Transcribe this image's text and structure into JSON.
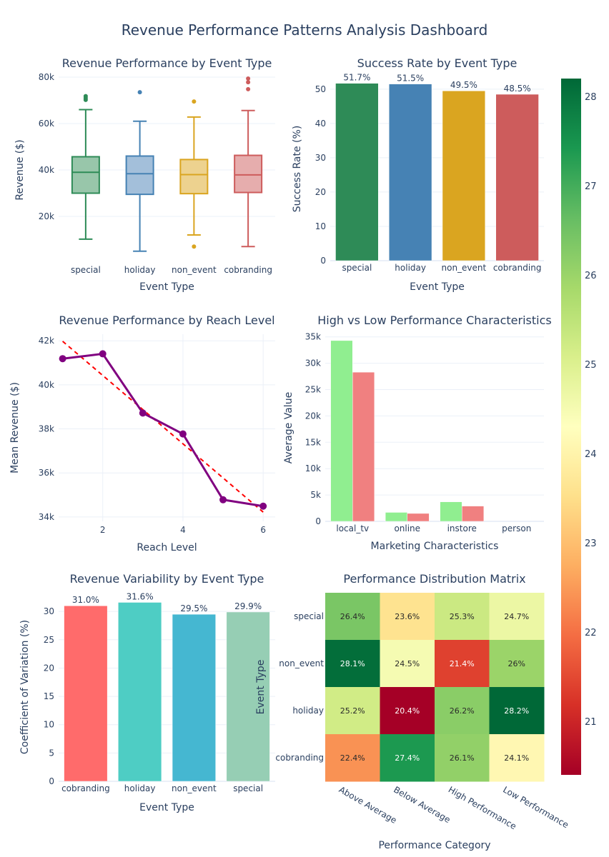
{
  "dashboard": {
    "title": "Revenue Performance Patterns Analysis Dashboard"
  },
  "chart_data": [
    {
      "id": "box",
      "type": "box",
      "title": "Revenue Performance by Event Type",
      "xlabel": "Event Type",
      "ylabel": "Revenue ($)",
      "ylim": [
        0,
        80000
      ],
      "yticks": [
        20000,
        40000,
        60000,
        80000
      ],
      "ytick_labels": [
        "20k",
        "40k",
        "60k",
        "80k"
      ],
      "categories": [
        "special",
        "holiday",
        "non_event",
        "cobranding"
      ],
      "series": [
        {
          "name": "special",
          "color": "#2e8b57",
          "fill": "#98c6aa",
          "lower": 10200,
          "q1": 30000,
          "median": 39000,
          "q3": 45700,
          "upper": 66000,
          "outliers": [
            70200,
            71000,
            71800
          ]
        },
        {
          "name": "holiday",
          "color": "#4682b4",
          "fill": "#a3bfda",
          "lower": 5000,
          "q1": 29500,
          "median": 38400,
          "q3": 46000,
          "upper": 61000,
          "outliers": [
            73500
          ]
        },
        {
          "name": "non_event",
          "color": "#daa520",
          "fill": "#edd28f",
          "lower": 12000,
          "q1": 29800,
          "median": 38000,
          "q3": 44500,
          "upper": 62800,
          "outliers": [
            69500,
            7000
          ]
        },
        {
          "name": "cobranding",
          "color": "#cd5c5c",
          "fill": "#e6adad",
          "lower": 7000,
          "q1": 30300,
          "median": 37900,
          "q3": 46300,
          "upper": 65600,
          "outliers": [
            74800,
            77800,
            79400
          ]
        }
      ]
    },
    {
      "id": "success",
      "type": "bar",
      "title": "Success Rate by Event Type",
      "xlabel": "Event Type",
      "ylabel": "Success Rate (%)",
      "ylim": [
        0,
        53.5
      ],
      "yticks": [
        0,
        10,
        20,
        30,
        40,
        50
      ],
      "categories": [
        "special",
        "holiday",
        "non_event",
        "cobranding"
      ],
      "values": [
        51.7,
        51.5,
        49.5,
        48.5
      ],
      "labels": [
        "51.7%",
        "51.5%",
        "49.5%",
        "48.5%"
      ],
      "colors": [
        "#2e8b57",
        "#4682b4",
        "#daa520",
        "#cd5c5c"
      ]
    },
    {
      "id": "reach",
      "type": "line",
      "title": "Revenue Performance by Reach Level",
      "xlabel": "Reach Level",
      "ylabel": "Mean Revenue ($)",
      "xlim": [
        0.9,
        6.3
      ],
      "ylim": [
        33800,
        42300
      ],
      "xticks": [
        2,
        4,
        6
      ],
      "yticks": [
        34000,
        36000,
        38000,
        40000,
        42000
      ],
      "ytick_labels": [
        "34k",
        "36k",
        "38k",
        "40k",
        "42k"
      ],
      "x": [
        1,
        2,
        3,
        4,
        5,
        6
      ],
      "series": [
        {
          "name": "Mean Revenue",
          "color": "#800080",
          "values": [
            41190,
            41410,
            38720,
            37770,
            34780,
            34490
          ]
        },
        {
          "name": "Trend",
          "color": "#ff0000",
          "dash": true,
          "x": [
            1,
            6
          ],
          "values": [
            41980,
            34220
          ]
        }
      ]
    },
    {
      "id": "highlow",
      "type": "bar",
      "title": "High vs Low Performance Characteristics",
      "xlabel": "Marketing Characteristics",
      "ylabel": "Average Value",
      "ylim": [
        0,
        35500
      ],
      "yticks": [
        0,
        5000,
        10000,
        15000,
        20000,
        25000,
        30000,
        35000
      ],
      "ytick_labels": [
        "0",
        "5k",
        "10k",
        "15k",
        "20k",
        "25k",
        "30k",
        "35k"
      ],
      "categories": [
        "local_tv",
        "online",
        "instore",
        "person"
      ],
      "series": [
        {
          "name": "High Performance",
          "color": "#90ee90",
          "values": [
            34300,
            1700,
            3700,
            0
          ]
        },
        {
          "name": "Low Performance",
          "color": "#f08080",
          "values": [
            28300,
            1500,
            2900,
            0
          ]
        }
      ]
    },
    {
      "id": "cv",
      "type": "bar",
      "title": "Revenue Variability by Event Type",
      "xlabel": "Event Type",
      "ylabel": "Coefficient of Variation (%)",
      "ylim": [
        0,
        33.3
      ],
      "yticks": [
        0,
        5,
        10,
        15,
        20,
        25,
        30
      ],
      "categories": [
        "cobranding",
        "holiday",
        "non_event",
        "special"
      ],
      "values": [
        31.0,
        31.6,
        29.5,
        29.9
      ],
      "labels": [
        "31.0%",
        "31.6%",
        "29.5%",
        "29.9%"
      ],
      "colors": [
        "#ff6b6b",
        "#4ecdc4",
        "#45b7d1",
        "#96ceb4"
      ]
    },
    {
      "id": "heat",
      "type": "heatmap",
      "title": "Performance Distribution Matrix",
      "xlabel": "Performance Category",
      "ylabel": "Event Type",
      "x": [
        "Above Average",
        "Below Average",
        "High Performance",
        "Low Performance"
      ],
      "y": [
        "special",
        "non_event",
        "holiday",
        "cobranding"
      ],
      "z": [
        [
          26.4,
          23.6,
          25.3,
          24.7
        ],
        [
          28.1,
          24.5,
          21.4,
          26.0
        ],
        [
          25.2,
          20.4,
          26.2,
          28.2
        ],
        [
          22.4,
          27.4,
          26.1,
          24.1
        ]
      ],
      "text": [
        [
          "26.4%",
          "23.6%",
          "25.3%",
          "24.7%"
        ],
        [
          "28.1%",
          "24.5%",
          "21.4%",
          "26%"
        ],
        [
          "25.2%",
          "20.4%",
          "26.2%",
          "28.2%"
        ],
        [
          "22.4%",
          "27.4%",
          "26.1%",
          "24.1%"
        ]
      ],
      "zlim": [
        20.4,
        28.2
      ],
      "colorscale": "RdYlGn",
      "colorbar_ticks": [
        21,
        22,
        23,
        24,
        25,
        26,
        27,
        28
      ]
    }
  ]
}
